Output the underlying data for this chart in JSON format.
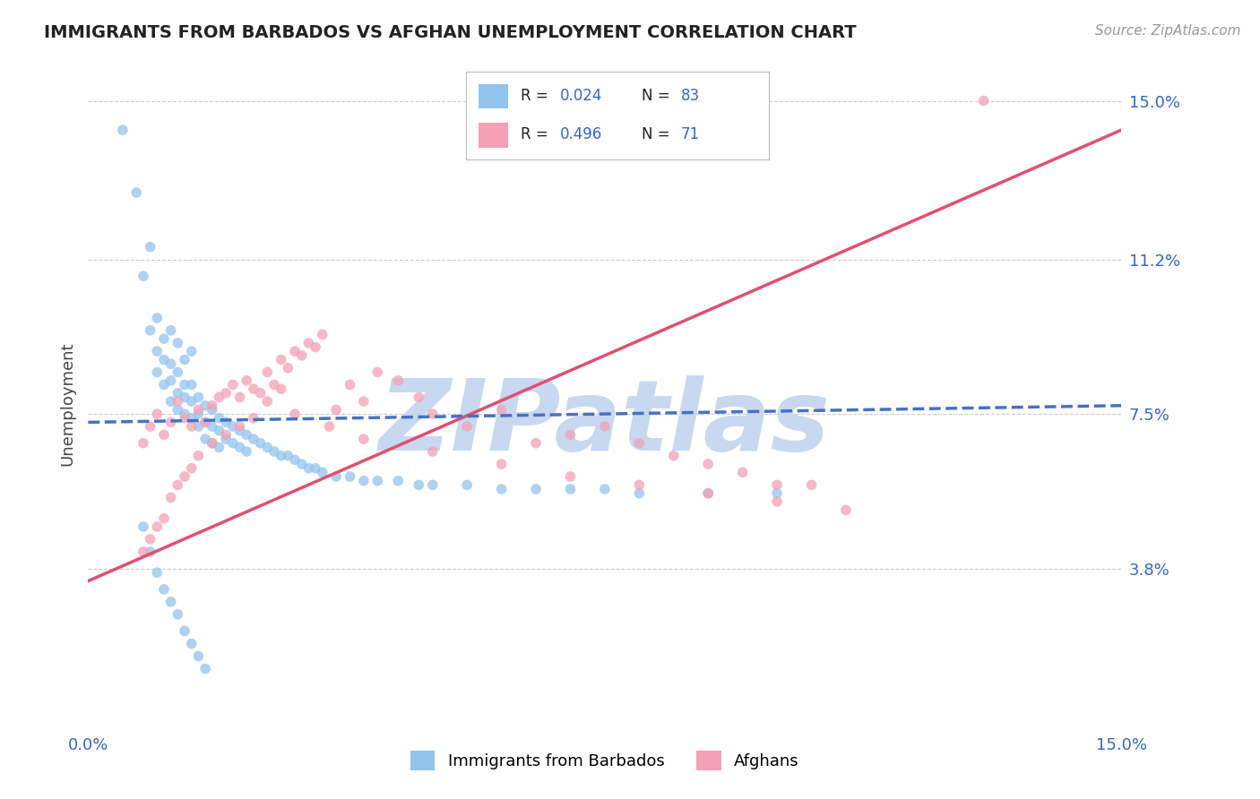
{
  "title": "IMMIGRANTS FROM BARBADOS VS AFGHAN UNEMPLOYMENT CORRELATION CHART",
  "source_text": "Source: ZipAtlas.com",
  "ylabel": "Unemployment",
  "xmin": 0.0,
  "xmax": 0.15,
  "ymin": 0.0,
  "ymax": 0.155,
  "yticks": [
    0.038,
    0.075,
    0.112,
    0.15
  ],
  "ytick_labels": [
    "3.8%",
    "7.5%",
    "11.2%",
    "15.0%"
  ],
  "legend_label1": "Immigrants from Barbados",
  "legend_label2": "Afghans",
  "scatter_color_blue": "#93C3EE",
  "scatter_color_pink": "#F4A0B5",
  "line_color_blue": "#4472C4",
  "line_color_pink": "#E05070",
  "watermark_text": "ZIPatlas",
  "watermark_color": "#C8D8F0",
  "title_color": "#222222",
  "axis_label_color": "#3366CC",
  "tick_color": "#3366CC",
  "grid_color": "#CCCCCC",
  "blue_line_x0": 0.0,
  "blue_line_x1": 0.15,
  "blue_line_y0": 0.073,
  "blue_line_y1": 0.077,
  "pink_line_x0": 0.0,
  "pink_line_x1": 0.15,
  "pink_line_y0": 0.035,
  "pink_line_y1": 0.143,
  "blue_scatter_x": [
    0.005,
    0.007,
    0.008,
    0.009,
    0.009,
    0.01,
    0.01,
    0.01,
    0.011,
    0.011,
    0.011,
    0.012,
    0.012,
    0.012,
    0.012,
    0.013,
    0.013,
    0.013,
    0.013,
    0.014,
    0.014,
    0.014,
    0.014,
    0.015,
    0.015,
    0.015,
    0.015,
    0.016,
    0.016,
    0.016,
    0.017,
    0.017,
    0.017,
    0.018,
    0.018,
    0.018,
    0.019,
    0.019,
    0.019,
    0.02,
    0.02,
    0.021,
    0.021,
    0.022,
    0.022,
    0.023,
    0.023,
    0.024,
    0.025,
    0.026,
    0.027,
    0.028,
    0.029,
    0.03,
    0.031,
    0.032,
    0.033,
    0.034,
    0.036,
    0.038,
    0.04,
    0.042,
    0.045,
    0.048,
    0.05,
    0.055,
    0.06,
    0.065,
    0.07,
    0.075,
    0.08,
    0.09,
    0.1,
    0.008,
    0.009,
    0.01,
    0.011,
    0.012,
    0.013,
    0.014,
    0.015,
    0.016,
    0.017
  ],
  "blue_scatter_y": [
    0.143,
    0.128,
    0.108,
    0.095,
    0.115,
    0.09,
    0.098,
    0.085,
    0.093,
    0.082,
    0.088,
    0.087,
    0.083,
    0.078,
    0.095,
    0.085,
    0.08,
    0.076,
    0.092,
    0.082,
    0.079,
    0.075,
    0.088,
    0.082,
    0.078,
    0.074,
    0.09,
    0.079,
    0.075,
    0.072,
    0.077,
    0.073,
    0.069,
    0.076,
    0.072,
    0.068,
    0.074,
    0.071,
    0.067,
    0.073,
    0.069,
    0.072,
    0.068,
    0.071,
    0.067,
    0.07,
    0.066,
    0.069,
    0.068,
    0.067,
    0.066,
    0.065,
    0.065,
    0.064,
    0.063,
    0.062,
    0.062,
    0.061,
    0.06,
    0.06,
    0.059,
    0.059,
    0.059,
    0.058,
    0.058,
    0.058,
    0.057,
    0.057,
    0.057,
    0.057,
    0.056,
    0.056,
    0.056,
    0.048,
    0.042,
    0.037,
    0.033,
    0.03,
    0.027,
    0.023,
    0.02,
    0.017,
    0.014
  ],
  "pink_scatter_x": [
    0.008,
    0.009,
    0.01,
    0.011,
    0.012,
    0.013,
    0.014,
    0.015,
    0.016,
    0.017,
    0.018,
    0.019,
    0.02,
    0.021,
    0.022,
    0.023,
    0.024,
    0.025,
    0.026,
    0.027,
    0.028,
    0.029,
    0.03,
    0.031,
    0.032,
    0.033,
    0.034,
    0.036,
    0.038,
    0.04,
    0.042,
    0.045,
    0.048,
    0.05,
    0.055,
    0.06,
    0.065,
    0.07,
    0.075,
    0.08,
    0.085,
    0.09,
    0.095,
    0.1,
    0.105,
    0.008,
    0.009,
    0.01,
    0.011,
    0.012,
    0.013,
    0.014,
    0.015,
    0.016,
    0.018,
    0.02,
    0.022,
    0.024,
    0.026,
    0.028,
    0.03,
    0.035,
    0.04,
    0.05,
    0.06,
    0.07,
    0.08,
    0.09,
    0.1,
    0.11,
    0.13
  ],
  "pink_scatter_y": [
    0.068,
    0.072,
    0.075,
    0.07,
    0.073,
    0.078,
    0.074,
    0.072,
    0.076,
    0.073,
    0.077,
    0.079,
    0.08,
    0.082,
    0.079,
    0.083,
    0.081,
    0.08,
    0.085,
    0.082,
    0.088,
    0.086,
    0.09,
    0.089,
    0.092,
    0.091,
    0.094,
    0.076,
    0.082,
    0.078,
    0.085,
    0.083,
    0.079,
    0.075,
    0.072,
    0.076,
    0.068,
    0.07,
    0.072,
    0.068,
    0.065,
    0.063,
    0.061,
    0.058,
    0.058,
    0.042,
    0.045,
    0.048,
    0.05,
    0.055,
    0.058,
    0.06,
    0.062,
    0.065,
    0.068,
    0.07,
    0.072,
    0.074,
    0.078,
    0.081,
    0.075,
    0.072,
    0.069,
    0.066,
    0.063,
    0.06,
    0.058,
    0.056,
    0.054,
    0.052,
    0.15
  ]
}
